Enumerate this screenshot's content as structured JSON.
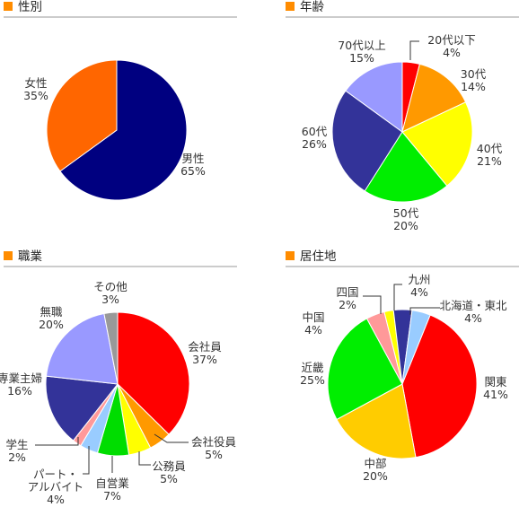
{
  "chart_data": [
    {
      "type": "pie",
      "title": "性別",
      "slices": [
        {
          "label": "男性",
          "value": 65,
          "display": "65%",
          "color": "#000080"
        },
        {
          "label": "女性",
          "value": 35,
          "display": "35%",
          "color": "#ff6600"
        }
      ]
    },
    {
      "type": "pie",
      "title": "年齢",
      "slices": [
        {
          "label": "20代以下",
          "value": 4,
          "display": "4%",
          "color": "#ff0000"
        },
        {
          "label": "30代",
          "value": 14,
          "display": "14%",
          "color": "#ff9900"
        },
        {
          "label": "40代",
          "value": 21,
          "display": "21%",
          "color": "#ffff00"
        },
        {
          "label": "50代",
          "value": 20,
          "display": "20%",
          "color": "#00ee00"
        },
        {
          "label": "60代",
          "value": 26,
          "display": "26%",
          "color": "#333399"
        },
        {
          "label": "70代以上",
          "value": 15,
          "display": "15%",
          "color": "#9999ff"
        }
      ]
    },
    {
      "type": "pie",
      "title": "職業",
      "slices": [
        {
          "label": "会社員",
          "value": 37,
          "display": "37%",
          "color": "#ff0000"
        },
        {
          "label": "会社役員",
          "value": 5,
          "display": "5%",
          "color": "#ff9900"
        },
        {
          "label": "公務員",
          "value": 5,
          "display": "5%",
          "color": "#ffff00"
        },
        {
          "label": "自営業",
          "value": 7,
          "display": "7%",
          "color": "#00dd00"
        },
        {
          "label": "パート・アルバイト",
          "value": 4,
          "display": "4%",
          "color": "#99ccff"
        },
        {
          "label": "学生",
          "value": 2,
          "display": "2%",
          "color": "#ff9999"
        },
        {
          "label": "専業主婦",
          "value": 16,
          "display": "16%",
          "color": "#333399"
        },
        {
          "label": "無職",
          "value": 20,
          "display": "20%",
          "color": "#9999ff"
        },
        {
          "label": "その他",
          "value": 3,
          "display": "3%",
          "color": "#999999"
        }
      ]
    },
    {
      "type": "pie",
      "title": "居住地",
      "slices": [
        {
          "label": "関東",
          "value": 41,
          "display": "41%",
          "color": "#ff0000"
        },
        {
          "label": "中部",
          "value": 20,
          "display": "20%",
          "color": "#ffcc00"
        },
        {
          "label": "近畿",
          "value": 25,
          "display": "25%",
          "color": "#00ee00"
        },
        {
          "label": "中国",
          "value": 4,
          "display": "4%",
          "color": "#ff9999"
        },
        {
          "label": "四国",
          "value": 2,
          "display": "2%",
          "color": "#ffff00"
        },
        {
          "label": "九州",
          "value": 4,
          "display": "4%",
          "color": "#333399"
        },
        {
          "label": "北海道・東北",
          "value": 4,
          "display": "4%",
          "color": "#99ccff"
        }
      ]
    }
  ],
  "colors": {
    "bullet": "#ff8c00",
    "rule": "#999999",
    "slice_border": "#ffffff"
  }
}
